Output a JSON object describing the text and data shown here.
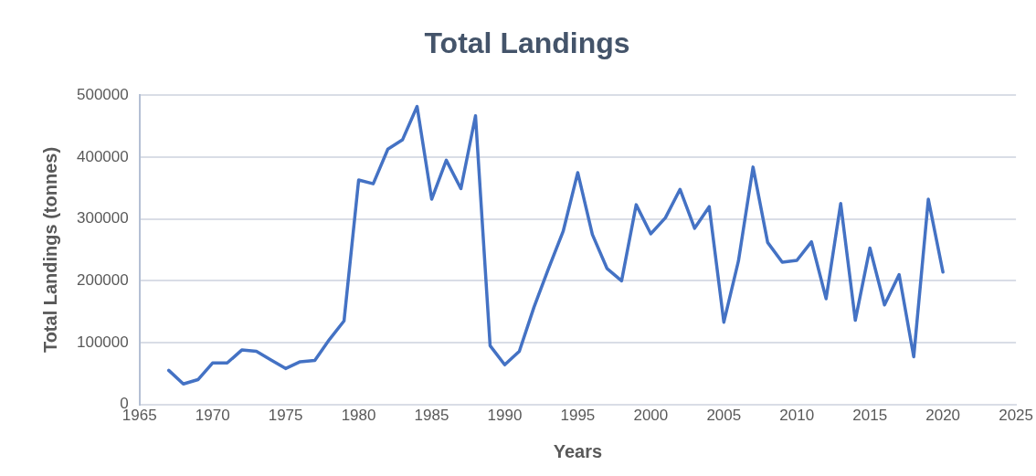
{
  "chart_data": {
    "type": "line",
    "title": "Total Landings",
    "xlabel": "Years",
    "ylabel": "Total Landings (tonnes)",
    "x": [
      1967,
      1968,
      1969,
      1970,
      1971,
      1972,
      1973,
      1974,
      1975,
      1976,
      1977,
      1978,
      1979,
      1980,
      1981,
      1982,
      1983,
      1984,
      1985,
      1986,
      1987,
      1988,
      1989,
      1990,
      1991,
      1992,
      1993,
      1994,
      1995,
      1996,
      1997,
      1998,
      1999,
      2000,
      2001,
      2002,
      2003,
      2004,
      2005,
      2006,
      2007,
      2008,
      2009,
      2010,
      2011,
      2012,
      2013,
      2014,
      2015,
      2016,
      2017,
      2018,
      2019,
      2020
    ],
    "series": [
      {
        "color": "#4472c4",
        "values": [
          55000,
          33000,
          40000,
          67000,
          67000,
          88000,
          86000,
          72000,
          58000,
          69000,
          71000,
          105000,
          135000,
          363000,
          357000,
          413000,
          428000,
          482000,
          332000,
          395000,
          349000,
          467000,
          95000,
          64000,
          86000,
          157000,
          220000,
          280000,
          375000,
          275000,
          220000,
          200000,
          323000,
          276000,
          302000,
          348000,
          285000,
          320000,
          133000,
          232000,
          384000,
          262000,
          230000,
          233000,
          263000,
          171000,
          325000,
          136000,
          253000,
          161000,
          210000,
          77000,
          332000,
          214000
        ]
      }
    ],
    "xlim": [
      1965,
      2025
    ],
    "xticks": [
      1965,
      1970,
      1975,
      1980,
      1985,
      1990,
      1995,
      2000,
      2005,
      2010,
      2015,
      2020,
      2025
    ],
    "ylim": [
      0,
      500000
    ],
    "yticks": [
      0,
      100000,
      200000,
      300000,
      400000,
      500000
    ],
    "grid": "y",
    "legend": false,
    "marker": "none",
    "line_style": "solid"
  }
}
